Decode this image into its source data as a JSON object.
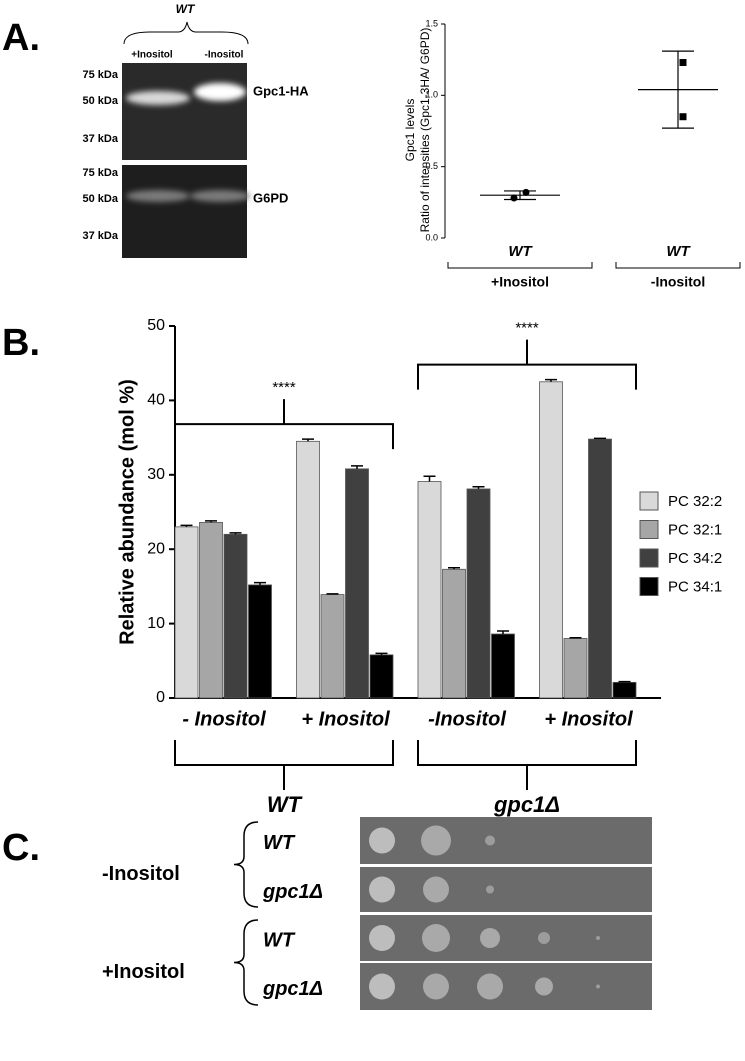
{
  "panel_labels": [
    "A.",
    "B.",
    "C."
  ],
  "blot": {
    "strain": "WT",
    "lanes": [
      "+Inositol",
      "-Inositol"
    ],
    "panels": [
      {
        "name": "Gpc1-HA",
        "markers": [
          "75 kDa",
          "50 kDa",
          "37 kDa"
        ]
      },
      {
        "name": "G6PD",
        "markers": [
          "75 kDa",
          "50 kDa",
          "37 kDa"
        ]
      }
    ]
  },
  "chart_data": [
    {
      "type": "dot",
      "y_label": [
        "Gpc1 levels",
        "Ratio of intensities (Gpc1-3HA/ G6PD)"
      ],
      "categories": [
        "WT",
        "WT"
      ],
      "group_labels": [
        "+Inositol",
        "-Inositol"
      ],
      "points": [
        [
          0.28,
          0.32
        ],
        [
          1.23,
          0.85
        ]
      ],
      "values": [
        0.3,
        1.04
      ],
      "errors": [
        0.03,
        0.27
      ],
      "ylim": [
        0,
        1.5
      ],
      "yticks": [
        {
          "value": 0,
          "label": "0.0"
        },
        {
          "value": 0.5,
          "label": "0.5"
        },
        {
          "value": 1,
          "label": "1.0"
        },
        {
          "value": 1.5,
          "label": "1.5"
        }
      ],
      "color": "#000000"
    },
    {
      "type": "bar",
      "y_label": "Relative abundance (mol %)",
      "categories": [
        "- Inositol",
        "+ Inositol",
        "-Inositol",
        "+ Inositol"
      ],
      "group_labels": [
        "WT",
        "gpc1Δ"
      ],
      "annotations": [
        "****",
        "****"
      ],
      "series": [
        {
          "name": "PC 32:2",
          "color": "#d9d9d9",
          "values": [
            23.0,
            34.5,
            29.1,
            42.5
          ],
          "errors": [
            0.2,
            0.3,
            0.7,
            0.3
          ]
        },
        {
          "name": "PC 32:1",
          "color": "#a6a6a6",
          "values": [
            23.6,
            13.9,
            17.3,
            8.0
          ],
          "errors": [
            0.2,
            0.1,
            0.2,
            0.1
          ]
        },
        {
          "name": "PC 34:2",
          "color": "#404040",
          "values": [
            22.0,
            30.8,
            28.1,
            34.8
          ],
          "errors": [
            0.2,
            0.4,
            0.3,
            0.1
          ]
        },
        {
          "name": "PC 34:1",
          "color": "#000000",
          "values": [
            15.2,
            5.8,
            8.6,
            2.1
          ],
          "errors": [
            0.3,
            0.2,
            0.4,
            0.1
          ]
        }
      ],
      "ylim": [
        0,
        50
      ],
      "yticks": [
        0,
        10,
        20,
        30,
        40,
        50
      ],
      "legend": "right"
    }
  ],
  "spot_assay": {
    "conditions": [
      {
        "label": "-Inositol",
        "strains": [
          "WT",
          "gpc1Δ"
        ]
      },
      {
        "label": "+Inositol",
        "strains": [
          "WT",
          "gpc1Δ"
        ]
      }
    ]
  }
}
